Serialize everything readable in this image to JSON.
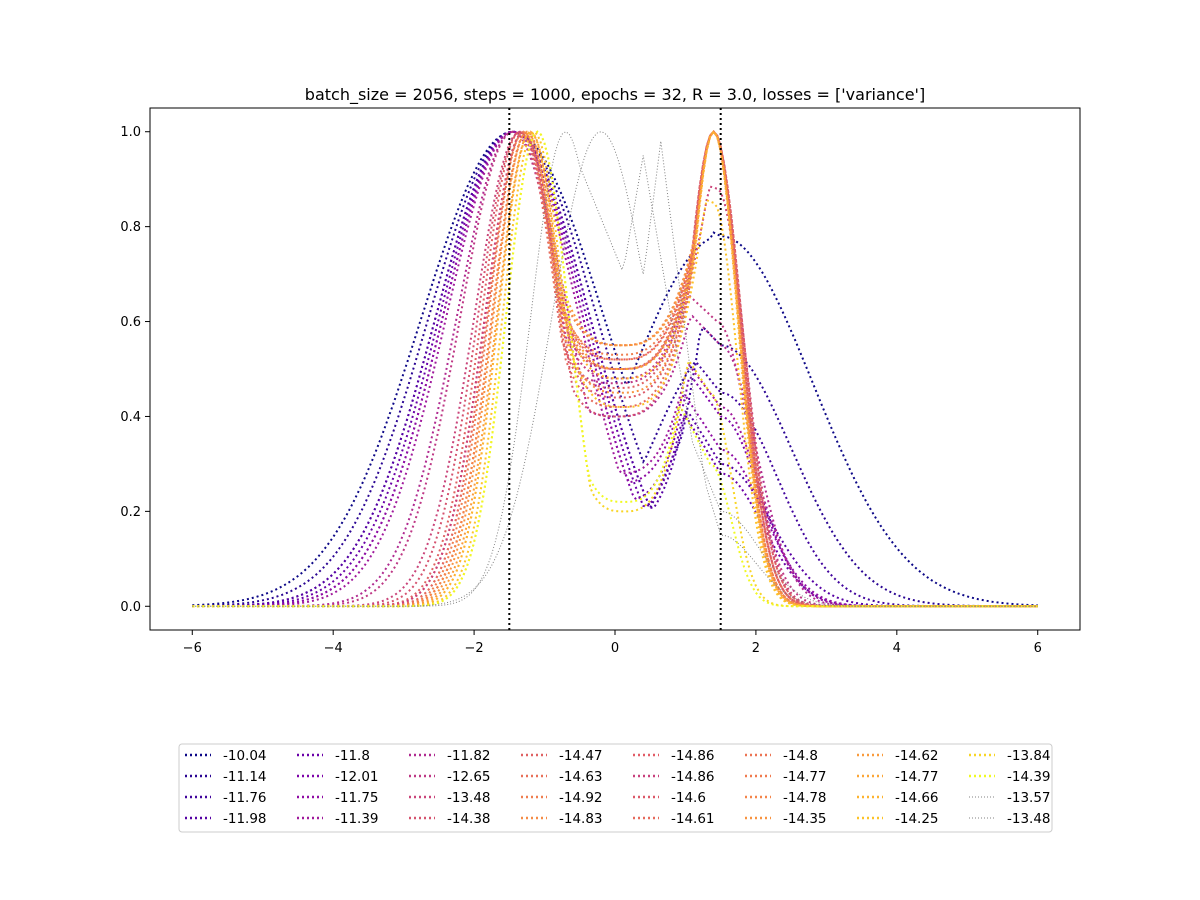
{
  "chart_data": {
    "type": "line",
    "title": "batch_size = 2056, steps = 1000, epochs = 32, R = 3.0, losses = ['variance']",
    "xlabel": "",
    "ylabel": "",
    "xlim": [
      -6.6,
      6.6
    ],
    "ylim": [
      -0.05,
      1.05
    ],
    "xticks": [
      -6,
      -4,
      -2,
      0,
      2,
      4,
      6
    ],
    "xtick_labels": [
      "−6",
      "−4",
      "−2",
      "0",
      "2",
      "4",
      "6"
    ],
    "yticks": [
      0.0,
      0.2,
      0.4,
      0.6,
      0.8,
      1.0
    ],
    "ytick_labels": [
      "0.0",
      "0.2",
      "0.4",
      "0.6",
      "0.8",
      "1.0"
    ],
    "grid": false,
    "legend_placement": "below plot, 8 columns",
    "vlines": [
      {
        "x": -1.5,
        "style": "dotted",
        "color": "#000000"
      },
      {
        "x": 1.5,
        "style": "dotted",
        "color": "#000000"
      }
    ],
    "series": [
      {
        "name": "-10.04",
        "color": "#0d0887",
        "style": "dotted",
        "peak_left": -1.45,
        "w_left": 1.3,
        "peak_right": 1.5,
        "w_right": 1.3,
        "h_right": 0.78,
        "mid": 0.14
      },
      {
        "name": "-11.14",
        "color": "#2a0593",
        "style": "dotted",
        "peak_left": -1.45,
        "w_left": 1.2,
        "peak_right": 1.5,
        "w_right": 1.0,
        "h_right": 0.55,
        "mid": 0.13
      },
      {
        "name": "-11.76",
        "color": "#41049d",
        "style": "dotted",
        "peak_left": -1.45,
        "w_left": 1.1,
        "peak_right": 1.5,
        "w_right": 0.8,
        "h_right": 0.45,
        "mid": 0.15
      },
      {
        "name": "-11.98",
        "color": "#5601a4",
        "style": "dotted",
        "peak_left": -1.45,
        "w_left": 1.1,
        "peak_right": 1.5,
        "w_right": 0.7,
        "h_right": 0.3,
        "mid": 0.17
      },
      {
        "name": "-11.8",
        "color": "#6a00a8",
        "style": "dotted",
        "peak_left": -1.45,
        "w_left": 1.05,
        "peak_right": 1.5,
        "w_right": 0.6,
        "h_right": 0.28,
        "mid": 0.19
      },
      {
        "name": "-12.01",
        "color": "#7e03a8",
        "style": "dotted",
        "peak_left": -1.45,
        "w_left": 1.0,
        "peak_right": 1.5,
        "w_right": 0.55,
        "h_right": 0.4,
        "mid": 0.22
      },
      {
        "name": "-11.75",
        "color": "#8f0da4",
        "style": "dotted",
        "peak_left": -1.45,
        "w_left": 1.0,
        "peak_right": 1.5,
        "w_right": 0.6,
        "h_right": 0.33,
        "mid": 0.26
      },
      {
        "name": "-11.39",
        "color": "#a01a9c",
        "style": "dotted",
        "peak_left": -1.45,
        "w_left": 0.95,
        "peak_right": 1.5,
        "w_right": 0.55,
        "h_right": 0.42,
        "mid": 0.28
      },
      {
        "name": "-11.82",
        "color": "#b02a90",
        "style": "dotted",
        "peak_left": -1.45,
        "w_left": 0.8,
        "peak_right": 1.5,
        "w_right": 0.5,
        "h_right": 0.55,
        "mid": 0.4
      },
      {
        "name": "-12.65",
        "color": "#be3885",
        "style": "dotted",
        "peak_left": -1.45,
        "w_left": 0.75,
        "peak_right": 1.45,
        "w_right": 0.45,
        "h_right": 0.6,
        "mid": 0.47
      },
      {
        "name": "-13.48",
        "color": "#ca457a",
        "style": "dotted",
        "peak_left": -1.35,
        "w_left": 0.65,
        "peak_right": 1.45,
        "w_right": 0.4,
        "h_right": 0.88,
        "mid": 0.5
      },
      {
        "name": "-14.38",
        "color": "#d5536f",
        "style": "dotted",
        "peak_left": -1.35,
        "w_left": 0.6,
        "peak_right": 1.4,
        "w_right": 0.4,
        "h_right": 1.0,
        "mid": 0.4
      },
      {
        "name": "-14.47",
        "color": "#df6263",
        "style": "dotted",
        "peak_left": -1.35,
        "w_left": 0.55,
        "peak_right": 1.4,
        "w_right": 0.4,
        "h_right": 1.0,
        "mid": 0.46
      },
      {
        "name": "-14.63",
        "color": "#e87059",
        "style": "dotted",
        "peak_left": -1.3,
        "w_left": 0.55,
        "peak_right": 1.4,
        "w_right": 0.38,
        "h_right": 1.0,
        "mid": 0.5
      },
      {
        "name": "-14.92",
        "color": "#ef7e4f",
        "style": "dotted",
        "peak_left": -1.3,
        "w_left": 0.5,
        "peak_right": 1.4,
        "w_right": 0.38,
        "h_right": 1.0,
        "mid": 0.53
      },
      {
        "name": "-14.83",
        "color": "#f58c46",
        "style": "dotted",
        "peak_left": -1.25,
        "w_left": 0.5,
        "peak_right": 1.4,
        "w_right": 0.36,
        "h_right": 1.0,
        "mid": 0.55
      },
      {
        "name": "-14.86",
        "color": "#e25c67",
        "style": "dotted",
        "peak_left": -1.3,
        "w_left": 0.55,
        "peak_right": 1.4,
        "w_right": 0.38,
        "h_right": 1.0,
        "mid": 0.52
      },
      {
        "name": "-14.86",
        "color": "#c8407c",
        "style": "dotted",
        "peak_left": -1.3,
        "w_left": 0.55,
        "peak_right": 1.4,
        "w_right": 0.38,
        "h_right": 1.0,
        "mid": 0.48
      },
      {
        "name": "-14.6",
        "color": "#db5868",
        "style": "dotted",
        "peak_left": -1.3,
        "w_left": 0.52,
        "peak_right": 1.4,
        "w_right": 0.38,
        "h_right": 1.0,
        "mid": 0.44
      },
      {
        "name": "-14.61",
        "color": "#e66a5c",
        "style": "dotted",
        "peak_left": -1.3,
        "w_left": 0.52,
        "peak_right": 1.4,
        "w_right": 0.38,
        "h_right": 1.0,
        "mid": 0.42
      },
      {
        "name": "-14.8",
        "color": "#ec7453",
        "style": "dotted",
        "peak_left": -1.25,
        "w_left": 0.5,
        "peak_right": 1.4,
        "w_right": 0.36,
        "h_right": 1.0,
        "mid": 0.5
      },
      {
        "name": "-14.77",
        "color": "#f07a4e",
        "style": "dotted",
        "peak_left": -1.25,
        "w_left": 0.5,
        "peak_right": 1.4,
        "w_right": 0.36,
        "h_right": 1.0,
        "mid": 0.52
      },
      {
        "name": "-14.78",
        "color": "#f4854a",
        "style": "dotted",
        "peak_left": -1.25,
        "w_left": 0.5,
        "peak_right": 1.4,
        "w_right": 0.36,
        "h_right": 1.0,
        "mid": 0.55
      },
      {
        "name": "-14.35",
        "color": "#f89340",
        "style": "dotted",
        "peak_left": -1.25,
        "w_left": 0.48,
        "peak_right": 1.4,
        "w_right": 0.35,
        "h_right": 1.0,
        "mid": 0.45
      },
      {
        "name": "-14.62",
        "color": "#fa9b3b",
        "style": "dotted",
        "peak_left": -1.2,
        "w_left": 0.48,
        "peak_right": 1.4,
        "w_right": 0.35,
        "h_right": 1.0,
        "mid": 0.55
      },
      {
        "name": "-14.77",
        "color": "#fca636",
        "style": "dotted",
        "peak_left": -1.2,
        "w_left": 0.46,
        "peak_right": 1.4,
        "w_right": 0.35,
        "h_right": 1.0,
        "mid": 0.5
      },
      {
        "name": "-14.66",
        "color": "#fdb32f",
        "style": "dotted",
        "peak_left": -1.2,
        "w_left": 0.46,
        "peak_right": 1.4,
        "w_right": 0.34,
        "h_right": 1.0,
        "mid": 0.48
      },
      {
        "name": "-14.25",
        "color": "#fdc328",
        "style": "dotted",
        "peak_left": -1.15,
        "w_left": 0.45,
        "peak_right": 1.4,
        "w_right": 0.34,
        "h_right": 0.85,
        "mid": 0.42
      },
      {
        "name": "-13.84",
        "color": "#f8d525",
        "style": "dotted",
        "peak_left": -1.1,
        "w_left": 0.45,
        "peak_right": 1.35,
        "w_right": 0.3,
        "h_right": 0.45,
        "mid": 0.2
      },
      {
        "name": "-14.39",
        "color": "#f0f921",
        "style": "dotted",
        "peak_left": -1.1,
        "w_left": 0.45,
        "peak_right": 1.35,
        "w_right": 0.3,
        "h_right": 0.3,
        "mid": 0.22
      },
      {
        "name": "-13.57",
        "color": "#808080",
        "style": "thin-dotted",
        "peak_left": -0.7,
        "w_left": 0.5,
        "peak_right": 1.5,
        "w_right": 0.55,
        "h_right": 0.2,
        "mid": 0.95
      },
      {
        "name": "-13.48",
        "color": "#808080",
        "style": "thin-dotted",
        "peak_left": -0.2,
        "w_left": 0.7,
        "peak_right": 1.5,
        "w_right": 0.5,
        "h_right": 0.15,
        "mid": 0.98
      }
    ]
  }
}
